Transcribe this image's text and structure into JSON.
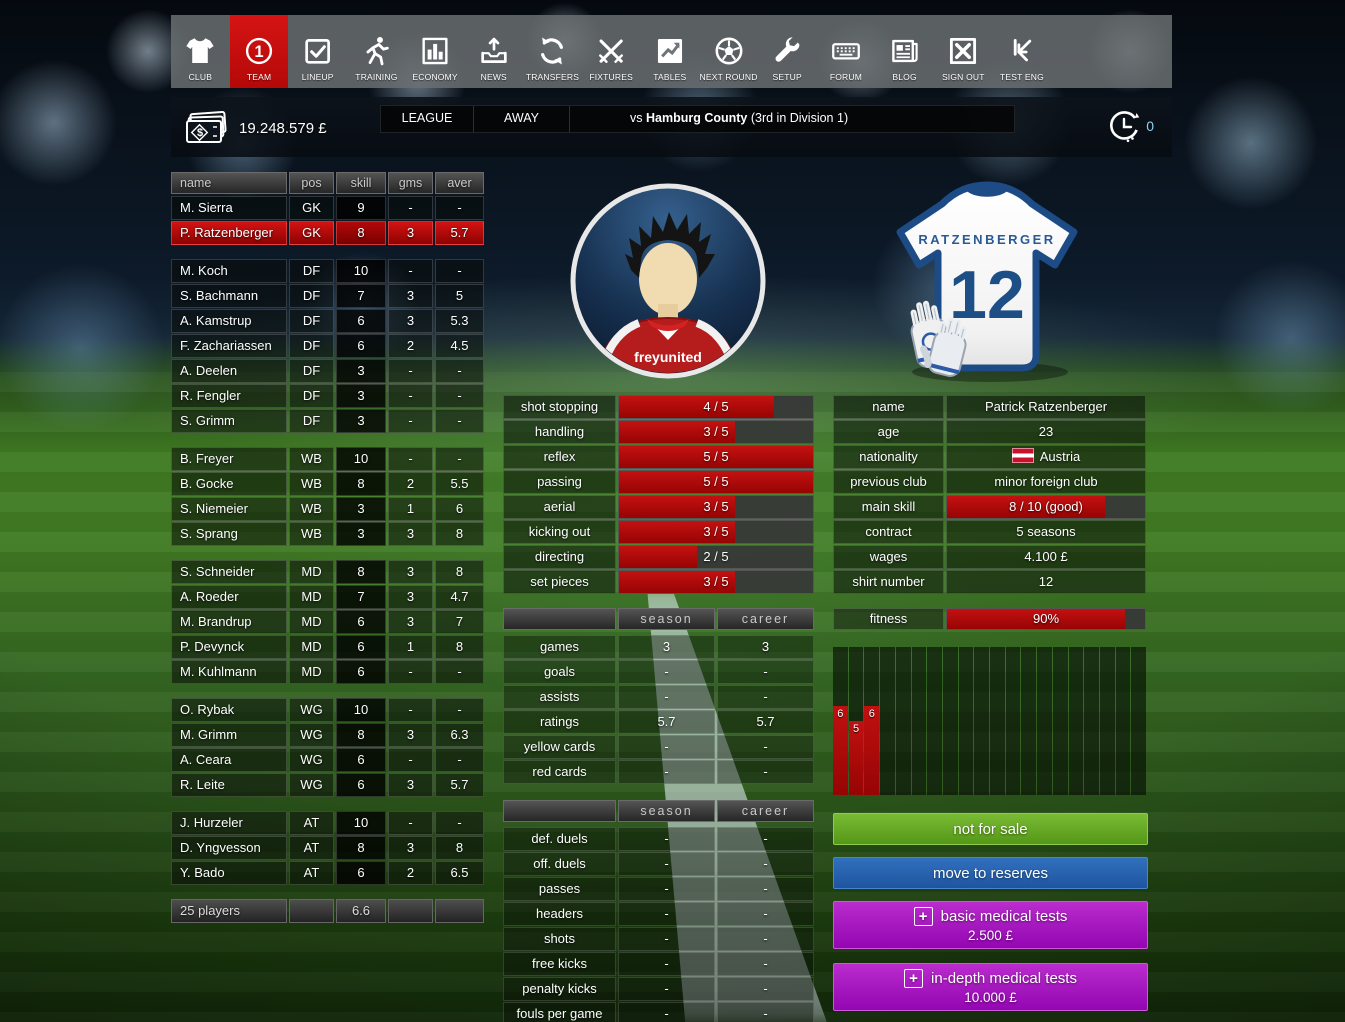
{
  "nav": {
    "items": [
      {
        "label": "CLUB",
        "icon": "shirt-icon",
        "active": false
      },
      {
        "label": "TEAM",
        "icon": "team-one-icon",
        "active": true
      },
      {
        "label": "LINEUP",
        "icon": "checkbox-icon",
        "active": false
      },
      {
        "label": "TRAINING",
        "icon": "runner-icon",
        "active": false
      },
      {
        "label": "ECONOMY",
        "icon": "bar-chart-icon",
        "active": false
      },
      {
        "label": "NEWS",
        "icon": "inbox-icon",
        "active": false
      },
      {
        "label": "TRANSFERS",
        "icon": "refresh-icon",
        "active": false
      },
      {
        "label": "FIXTURES",
        "icon": "crossed-swords-icon",
        "active": false
      },
      {
        "label": "TABLES",
        "icon": "chart-box-icon",
        "active": false
      },
      {
        "label": "NEXT ROUND",
        "icon": "soccer-ball-icon",
        "active": false
      },
      {
        "label": "SETUP",
        "icon": "wrench-icon",
        "active": false
      },
      {
        "label": "FORUM",
        "icon": "keyboard-icon",
        "active": false
      },
      {
        "label": "BLOG",
        "icon": "newspaper-icon",
        "active": false
      },
      {
        "label": "SIGN OUT",
        "icon": "signout-icon",
        "active": false
      },
      {
        "label": "TEST ENG",
        "icon": "test-eng-icon",
        "active": false
      }
    ]
  },
  "header": {
    "money": "19.248.579 £",
    "competition": "LEAGUE",
    "venue": "AWAY",
    "opponent_prefix": "vs ",
    "opponent": "Hamburg County",
    "opponent_suffix": " (3rd in Division 1)",
    "timer": "0"
  },
  "squad": {
    "columns": [
      "name",
      "pos",
      "skill",
      "gms",
      "aver"
    ],
    "groups": [
      {
        "rows": [
          {
            "name": "M. Sierra",
            "pos": "GK",
            "skill": "9",
            "gms": "-",
            "aver": "-",
            "selected": false
          },
          {
            "name": "P. Ratzenberger",
            "pos": "GK",
            "skill": "8",
            "gms": "3",
            "aver": "5.7",
            "selected": true
          }
        ]
      },
      {
        "rows": [
          {
            "name": "M. Koch",
            "pos": "DF",
            "skill": "10",
            "gms": "-",
            "aver": "-",
            "selected": false
          },
          {
            "name": "S. Bachmann",
            "pos": "DF",
            "skill": "7",
            "gms": "3",
            "aver": "5",
            "selected": false
          },
          {
            "name": "A. Kamstrup",
            "pos": "DF",
            "skill": "6",
            "gms": "3",
            "aver": "5.3",
            "selected": false
          },
          {
            "name": "F. Zachariassen",
            "pos": "DF",
            "skill": "6",
            "gms": "2",
            "aver": "4.5",
            "selected": false
          },
          {
            "name": "A. Deelen",
            "pos": "DF",
            "skill": "3",
            "gms": "-",
            "aver": "-",
            "selected": false
          },
          {
            "name": "R. Fengler",
            "pos": "DF",
            "skill": "3",
            "gms": "-",
            "aver": "-",
            "selected": false
          },
          {
            "name": "S. Grimm",
            "pos": "DF",
            "skill": "3",
            "gms": "-",
            "aver": "-",
            "selected": false
          }
        ]
      },
      {
        "rows": [
          {
            "name": "B. Freyer",
            "pos": "WB",
            "skill": "10",
            "gms": "-",
            "aver": "-",
            "selected": false
          },
          {
            "name": "B. Gocke",
            "pos": "WB",
            "skill": "8",
            "gms": "2",
            "aver": "5.5",
            "selected": false
          },
          {
            "name": "S. Niemeier",
            "pos": "WB",
            "skill": "3",
            "gms": "1",
            "aver": "6",
            "selected": false
          },
          {
            "name": "S. Sprang",
            "pos": "WB",
            "skill": "3",
            "gms": "3",
            "aver": "8",
            "selected": false
          }
        ]
      },
      {
        "rows": [
          {
            "name": "S. Schneider",
            "pos": "MD",
            "skill": "8",
            "gms": "3",
            "aver": "8",
            "selected": false
          },
          {
            "name": "A. Roeder",
            "pos": "MD",
            "skill": "7",
            "gms": "3",
            "aver": "4.7",
            "selected": false
          },
          {
            "name": "M. Brandrup",
            "pos": "MD",
            "skill": "6",
            "gms": "3",
            "aver": "7",
            "selected": false
          },
          {
            "name": "P. Devynck",
            "pos": "MD",
            "skill": "6",
            "gms": "1",
            "aver": "8",
            "selected": false
          },
          {
            "name": "M. Kuhlmann",
            "pos": "MD",
            "skill": "6",
            "gms": "-",
            "aver": "-",
            "selected": false
          }
        ]
      },
      {
        "rows": [
          {
            "name": "O. Rybak",
            "pos": "WG",
            "skill": "10",
            "gms": "-",
            "aver": "-",
            "selected": false
          },
          {
            "name": "M. Grimm",
            "pos": "WG",
            "skill": "8",
            "gms": "3",
            "aver": "6.3",
            "selected": false
          },
          {
            "name": "A. Ceara",
            "pos": "WG",
            "skill": "6",
            "gms": "-",
            "aver": "-",
            "selected": false
          },
          {
            "name": "R. Leite",
            "pos": "WG",
            "skill": "6",
            "gms": "3",
            "aver": "5.7",
            "selected": false
          }
        ]
      },
      {
        "rows": [
          {
            "name": "J. Hurzeler",
            "pos": "AT",
            "skill": "10",
            "gms": "-",
            "aver": "-",
            "selected": false
          },
          {
            "name": "D. Yngvesson",
            "pos": "AT",
            "skill": "8",
            "gms": "3",
            "aver": "8",
            "selected": false
          },
          {
            "name": "Y. Bado",
            "pos": "AT",
            "skill": "6",
            "gms": "2",
            "aver": "6.5",
            "selected": false
          }
        ]
      }
    ],
    "footer": [
      "25 players",
      "",
      "6.6",
      "",
      ""
    ]
  },
  "player": {
    "avatar_team": "freyunited",
    "jersey": {
      "name": "RATZENBERGER",
      "number": "12"
    },
    "skills": [
      {
        "label": "shot stopping",
        "display": "4 / 5",
        "value": 4,
        "max": 5
      },
      {
        "label": "handling",
        "display": "3 / 5",
        "value": 3,
        "max": 5
      },
      {
        "label": "reflex",
        "display": "5 / 5",
        "value": 5,
        "max": 5
      },
      {
        "label": "passing",
        "display": "5 / 5",
        "value": 5,
        "max": 5
      },
      {
        "label": "aerial",
        "display": "3 / 5",
        "value": 3,
        "max": 5
      },
      {
        "label": "kicking out",
        "display": "3 / 5",
        "value": 3,
        "max": 5
      },
      {
        "label": "directing",
        "display": "2 / 5",
        "value": 2,
        "max": 5
      },
      {
        "label": "set pieces",
        "display": "3 / 5",
        "value": 3,
        "max": 5
      }
    ],
    "info": [
      {
        "label": "name",
        "value": "Patrick Ratzenberger"
      },
      {
        "label": "age",
        "value": "23"
      },
      {
        "label": "nationality",
        "value": "Austria",
        "flag": "austria-flag"
      },
      {
        "label": "previous club",
        "value": "minor foreign club"
      },
      {
        "label": "main skill",
        "value": "8 / 10 (good)",
        "bar_pct": 80
      },
      {
        "label": "contract",
        "value": "5 seasons"
      },
      {
        "label": "wages",
        "value": "4.100 £"
      },
      {
        "label": "shirt number",
        "value": "12"
      }
    ],
    "fitness": {
      "label": "fitness",
      "value": "90%",
      "pct": 90
    },
    "stats_main": {
      "headers": [
        "season",
        "career"
      ],
      "rows": [
        {
          "label": "games",
          "season": "3",
          "career": "3"
        },
        {
          "label": "goals",
          "season": "-",
          "career": "-"
        },
        {
          "label": "assists",
          "season": "-",
          "career": "-"
        },
        {
          "label": "ratings",
          "season": "5.7",
          "career": "5.7"
        },
        {
          "label": "yellow cards",
          "season": "-",
          "career": "-"
        },
        {
          "label": "red cards",
          "season": "-",
          "career": "-"
        }
      ]
    },
    "stats_detail": {
      "headers": [
        "season",
        "career"
      ],
      "rows": [
        {
          "label": "def. duels",
          "season": "-",
          "career": "-"
        },
        {
          "label": "off. duels",
          "season": "-",
          "career": "-"
        },
        {
          "label": "passes",
          "season": "-",
          "career": "-"
        },
        {
          "label": "headers",
          "season": "-",
          "career": "-"
        },
        {
          "label": "shots",
          "season": "-",
          "career": "-"
        },
        {
          "label": "free kicks",
          "season": "-",
          "career": "-"
        },
        {
          "label": "penalty kicks",
          "season": "-",
          "career": "-"
        },
        {
          "label": "fouls per game",
          "season": "-",
          "career": "-"
        }
      ]
    },
    "actions": {
      "not_for_sale": "not for sale",
      "move_to_reserves": "move to reserves",
      "basic_medical": {
        "label": "basic medical tests",
        "price": "2.500 £"
      },
      "indepth_medical": {
        "label": "in-depth medical tests",
        "price": "10.000 £"
      }
    }
  },
  "chart_data": {
    "type": "bar",
    "title": "match ratings history",
    "slots": 20,
    "values": [
      6,
      5,
      6,
      null,
      null,
      null,
      null,
      null,
      null,
      null,
      null,
      null,
      null,
      null,
      null,
      null,
      null,
      null,
      null,
      null
    ],
    "ylim": [
      0,
      10
    ],
    "bar_color": "#b80b0b"
  },
  "colors": {
    "accent_red": "#c41111",
    "green_button": "#559818",
    "blue_button": "#2a66b2",
    "purple_button": "#a915c0"
  }
}
